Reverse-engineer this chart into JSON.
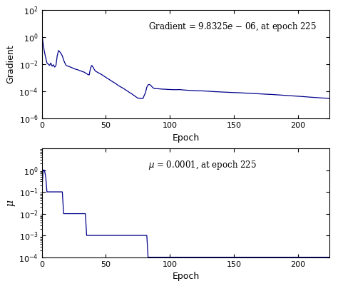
{
  "line_color": "#00008B",
  "xlim": [
    0,
    225
  ],
  "gradient_ylim": [
    1e-06,
    100.0
  ],
  "mu_ylim": [
    0.0001,
    10.0
  ],
  "xlabel": "Epoch",
  "ylabel_top": "Gradient",
  "ylabel_bottom": "μ",
  "xticks": [
    0,
    50,
    100,
    150,
    200
  ],
  "gradient_yticks": [
    1e-06,
    0.0001,
    0.01,
    1.0,
    100.0
  ],
  "mu_yticks": [
    0.0001,
    0.001,
    0.01,
    0.1,
    1.0
  ],
  "background_color": "#ffffff",
  "figsize": [
    4.74,
    4.01
  ],
  "dpi": 100
}
